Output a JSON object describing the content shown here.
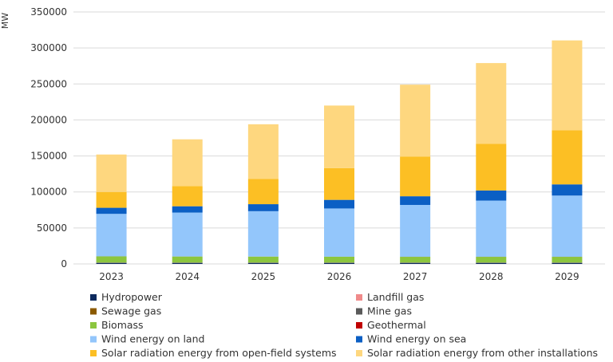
{
  "chart_data": {
    "type": "bar",
    "stacked": true,
    "title": "",
    "xlabel": "",
    "ylabel": "MW",
    "ylim": [
      0,
      350000
    ],
    "yticks": [
      "0",
      "50000",
      "100000",
      "150000",
      "200000",
      "250000",
      "300000",
      "350000"
    ],
    "grid": "horizontal",
    "legend_position": "bottom",
    "categories": [
      "2023",
      "2024",
      "2025",
      "2026",
      "2027",
      "2028",
      "2029"
    ],
    "series": [
      {
        "name": "Hydropower",
        "color": "#0d2a5e",
        "values": [
          1500,
          1500,
          1500,
          1500,
          1500,
          1500,
          1500
        ]
      },
      {
        "name": "Landfill gas",
        "color": "#f08a8a",
        "values": [
          100,
          100,
          100,
          100,
          100,
          100,
          100
        ]
      },
      {
        "name": "Sewage gas",
        "color": "#8b5a00",
        "values": [
          200,
          200,
          200,
          200,
          200,
          200,
          200
        ]
      },
      {
        "name": "Mine gas",
        "color": "#5a5a5a",
        "values": [
          100,
          100,
          100,
          100,
          100,
          100,
          100
        ]
      },
      {
        "name": "Biomass",
        "color": "#8cc63f",
        "values": [
          8600,
          8400,
          8300,
          8100,
          8000,
          8000,
          8000
        ]
      },
      {
        "name": "Geothermal",
        "color": "#c00000",
        "values": [
          50,
          50,
          50,
          50,
          50,
          50,
          50
        ]
      },
      {
        "name": "Wind energy on land",
        "color": "#93c6fb",
        "values": [
          59000,
          61000,
          63000,
          67000,
          72000,
          78000,
          85000
        ]
      },
      {
        "name": "Wind energy on sea",
        "color": "#0b5fc4",
        "values": [
          8450,
          8750,
          9750,
          11950,
          12050,
          14050,
          15550
        ]
      },
      {
        "name": "Solar radiation energy from open-field systems",
        "color": "#fcbf24",
        "values": [
          22000,
          28000,
          35000,
          44000,
          55000,
          65000,
          75000
        ]
      },
      {
        "name": "Solar radiation energy from other installations",
        "color": "#fed77f",
        "values": [
          52000,
          65000,
          76000,
          87000,
          100000,
          112000,
          125000
        ]
      }
    ]
  }
}
